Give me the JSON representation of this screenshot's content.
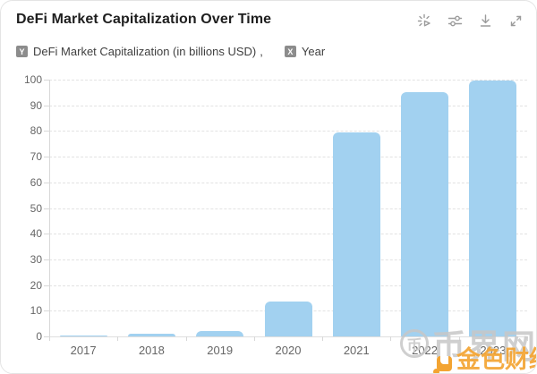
{
  "card": {
    "title": "DeFi Market Capitalization Over Time",
    "toolbar": [
      {
        "name": "spark-animation-icon"
      },
      {
        "name": "settings-sliders-icon"
      },
      {
        "name": "download-icon"
      },
      {
        "name": "expand-icon"
      }
    ],
    "legend": {
      "y_badge": "Y",
      "y_label": "DeFi Market Capitalization (in billions USD)",
      "separator": ",",
      "x_badge": "X",
      "x_label": "Year"
    }
  },
  "chart_data": {
    "type": "bar",
    "title": "DeFi Market Capitalization Over Time",
    "series_name": "DeFi Market Capitalization (in billions USD)",
    "xlabel": "Year",
    "ylabel": "DeFi Market Capitalization (in billions USD)",
    "categories": [
      "2017",
      "2018",
      "2019",
      "2020",
      "2021",
      "2022",
      "2023"
    ],
    "values": [
      0.5,
      1,
      2,
      13.5,
      79.5,
      95,
      99.5
    ],
    "ylim": [
      0,
      100
    ],
    "ytick_interval": 10,
    "grid": true,
    "legend_position": "top-left",
    "bar_color": "#a2d1f0"
  },
  "watermarks": {
    "gray": {
      "logo_glyph": "币",
      "text": "币界网"
    },
    "orange": {
      "text": "金色财经"
    }
  }
}
